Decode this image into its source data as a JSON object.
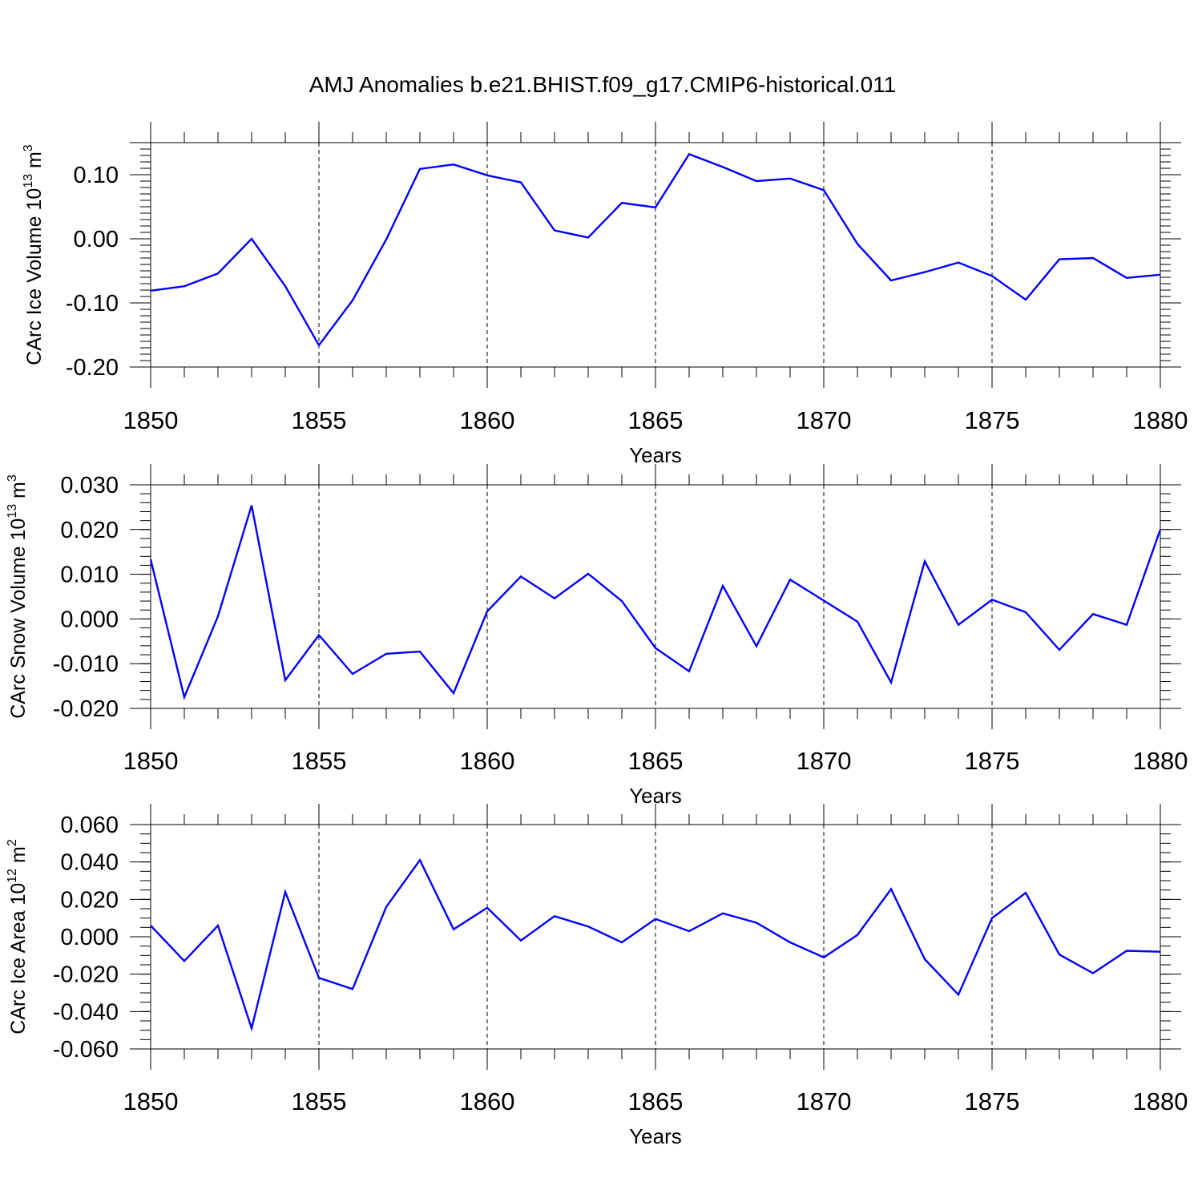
{
  "title": "AMJ Anomalies b.e21.BHIST.f09_g17.CMIP6-historical.011",
  "colors": {
    "series": "#0000ff",
    "axis": "#000000",
    "background": "#ffffff"
  },
  "chart_data": [
    {
      "type": "line",
      "xlabel": "Years",
      "ylabel_main": "CArc Ice Volume 10",
      "ylabel_exp": "13",
      "ylabel_unit": " m",
      "ylabel_unit_exp": "3",
      "xlim": [
        1850,
        1880
      ],
      "ylim": [
        -0.2,
        0.15
      ],
      "xticks": [
        1850,
        1855,
        1860,
        1865,
        1870,
        1875,
        1880
      ],
      "xtick_labels": [
        "1850",
        "1855",
        "1860",
        "1865",
        "1870",
        "1875",
        "1880"
      ],
      "yticks": [
        0.1,
        0.0,
        -0.1,
        -0.2
      ],
      "ytick_labels": [
        "0.10",
        "0.00",
        "-0.10",
        "-0.20"
      ],
      "grid": "dashed vertical at major x ticks",
      "x": [
        1850,
        1851,
        1852,
        1853,
        1854,
        1855,
        1856,
        1857,
        1858,
        1859,
        1860,
        1861,
        1862,
        1863,
        1864,
        1865,
        1866,
        1867,
        1868,
        1869,
        1870,
        1871,
        1872,
        1873,
        1874,
        1875,
        1876,
        1877,
        1878,
        1879,
        1880
      ],
      "values": [
        -0.081,
        -0.074,
        -0.054,
        0.0,
        -0.074,
        -0.166,
        -0.096,
        -0.001,
        0.109,
        0.116,
        0.099,
        0.088,
        0.013,
        0.002,
        0.056,
        0.049,
        0.132,
        0.112,
        0.09,
        0.094,
        0.076,
        -0.008,
        -0.065,
        -0.052,
        -0.037,
        -0.058,
        -0.095,
        -0.032,
        -0.03,
        -0.061,
        -0.056
      ]
    },
    {
      "type": "line",
      "xlabel": "Years",
      "ylabel_main": "CArc Snow Volume 10",
      "ylabel_exp": "13",
      "ylabel_unit": " m",
      "ylabel_unit_exp": "3",
      "xlim": [
        1850,
        1880
      ],
      "ylim": [
        -0.02,
        0.03
      ],
      "xticks": [
        1850,
        1855,
        1860,
        1865,
        1870,
        1875,
        1880
      ],
      "xtick_labels": [
        "1850",
        "1855",
        "1860",
        "1865",
        "1870",
        "1875",
        "1880"
      ],
      "yticks": [
        0.03,
        0.02,
        0.01,
        0.0,
        -0.01,
        -0.02
      ],
      "ytick_labels": [
        "0.030",
        "0.020",
        "0.010",
        "0.000",
        "-0.010",
        "-0.020"
      ],
      "grid": "dashed vertical at major x ticks",
      "x": [
        1850,
        1851,
        1852,
        1853,
        1854,
        1855,
        1856,
        1857,
        1858,
        1859,
        1860,
        1861,
        1862,
        1863,
        1864,
        1865,
        1866,
        1867,
        1868,
        1869,
        1870,
        1871,
        1872,
        1873,
        1874,
        1875,
        1876,
        1877,
        1878,
        1879,
        1880
      ],
      "values": [
        0.0133,
        -0.0175,
        0.0006,
        0.0254,
        -0.0137,
        -0.0036,
        -0.0123,
        -0.0078,
        -0.0073,
        -0.0166,
        0.0017,
        0.0095,
        0.0046,
        0.0101,
        0.004,
        -0.0065,
        -0.0117,
        0.0074,
        -0.0061,
        0.0088,
        0.0041,
        -0.0006,
        -0.0142,
        0.0129,
        -0.0013,
        0.0043,
        0.0015,
        -0.0069,
        0.0011,
        -0.0013,
        0.02
      ]
    },
    {
      "type": "line",
      "xlabel": "Years",
      "ylabel_main": "CArc Ice Area 10",
      "ylabel_exp": "12",
      "ylabel_unit": " m",
      "ylabel_unit_exp": "2",
      "xlim": [
        1850,
        1880
      ],
      "ylim": [
        -0.06,
        0.06
      ],
      "xticks": [
        1850,
        1855,
        1860,
        1865,
        1870,
        1875,
        1880
      ],
      "xtick_labels": [
        "1850",
        "1855",
        "1860",
        "1865",
        "1870",
        "1875",
        "1880"
      ],
      "yticks": [
        0.06,
        0.04,
        0.02,
        0.0,
        -0.02,
        -0.04,
        -0.06
      ],
      "ytick_labels": [
        "0.060",
        "0.040",
        "0.020",
        "0.000",
        "-0.020",
        "-0.040",
        "-0.060"
      ],
      "grid": "dashed vertical at major x ticks",
      "x": [
        1850,
        1851,
        1852,
        1853,
        1854,
        1855,
        1856,
        1857,
        1858,
        1859,
        1860,
        1861,
        1862,
        1863,
        1864,
        1865,
        1866,
        1867,
        1868,
        1869,
        1870,
        1871,
        1872,
        1873,
        1874,
        1875,
        1876,
        1877,
        1878,
        1879,
        1880
      ],
      "values": [
        0.006,
        -0.013,
        0.006,
        -0.049,
        0.024,
        -0.022,
        -0.028,
        0.016,
        0.041,
        0.004,
        0.0155,
        -0.002,
        0.011,
        0.0055,
        -0.003,
        0.0095,
        0.003,
        0.0125,
        0.0075,
        -0.003,
        -0.011,
        0.001,
        0.0255,
        -0.012,
        -0.031,
        0.01,
        0.0235,
        -0.0095,
        -0.0195,
        -0.0075,
        -0.008
      ]
    }
  ]
}
